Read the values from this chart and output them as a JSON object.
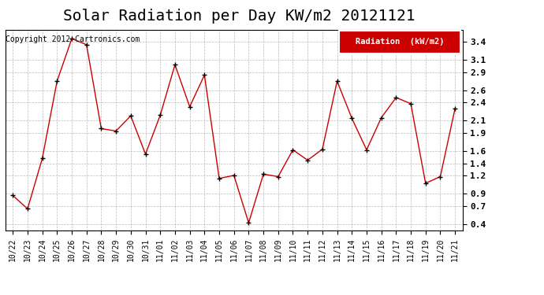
{
  "title": "Solar Radiation per Day KW/m2 20121121",
  "copyright_text": "Copyright 2012 Cartronics.com",
  "legend_label": "Radiation  (kW/m2)",
  "categories": [
    "10/22",
    "10/23",
    "10/24",
    "10/25",
    "10/26",
    "10/27",
    "10/28",
    "10/29",
    "10/30",
    "10/31",
    "11/01",
    "11/02",
    "11/03",
    "11/04",
    "11/05",
    "11/06",
    "11/07",
    "11/08",
    "11/09",
    "11/10",
    "11/11",
    "11/12",
    "11/13",
    "11/14",
    "11/15",
    "11/16",
    "11/17",
    "11/18",
    "11/19",
    "11/20",
    "11/21"
  ],
  "values": [
    0.87,
    0.65,
    1.48,
    2.75,
    3.45,
    3.35,
    1.97,
    1.93,
    2.18,
    1.55,
    2.19,
    3.02,
    2.33,
    2.85,
    1.15,
    1.2,
    0.42,
    1.22,
    1.18,
    1.62,
    1.45,
    1.63,
    2.75,
    2.14,
    1.62,
    2.15,
    2.48,
    2.38,
    1.07,
    1.18,
    2.3
  ],
  "line_color": "#cc0000",
  "marker_color": "#000000",
  "background_color": "#ffffff",
  "grid_color": "#aaaaaa",
  "ylim": [
    0.3,
    3.6
  ],
  "yticks": [
    0.4,
    0.7,
    0.9,
    1.2,
    1.4,
    1.6,
    1.9,
    2.1,
    2.4,
    2.6,
    2.9,
    3.1,
    3.4
  ],
  "legend_bg": "#cc0000",
  "legend_text_color": "#ffffff",
  "title_fontsize": 14,
  "tick_fontsize": 7,
  "copyright_fontsize": 7
}
